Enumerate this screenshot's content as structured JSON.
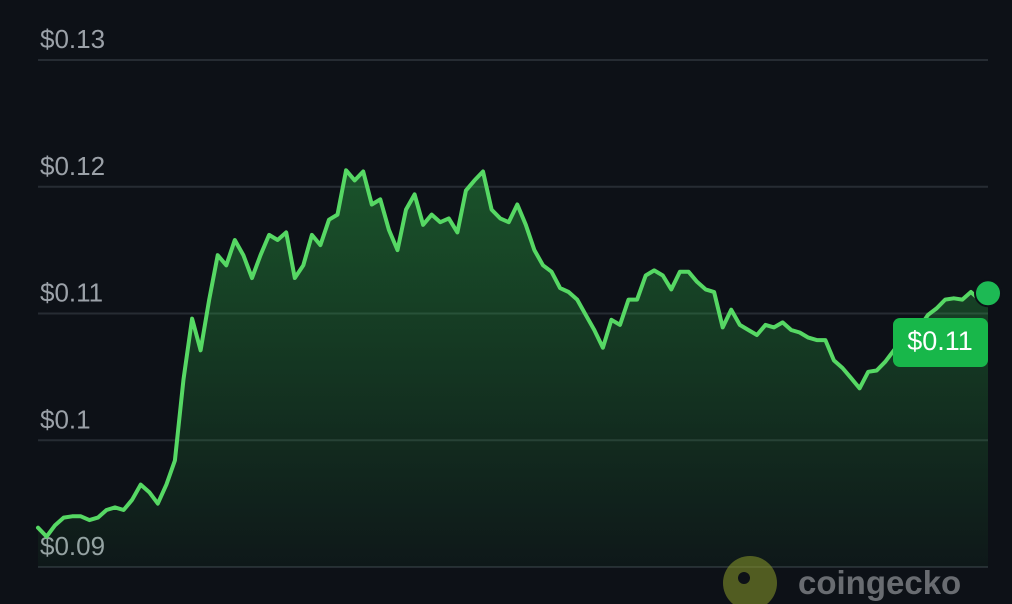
{
  "chart_data": {
    "type": "area",
    "values": [
      0.0931,
      0.0924,
      0.0933,
      0.0939,
      0.094,
      0.094,
      0.0937,
      0.0939,
      0.0945,
      0.0947,
      0.0945,
      0.0953,
      0.0965,
      0.0959,
      0.095,
      0.0965,
      0.0984,
      0.1048,
      0.1096,
      0.1071,
      0.1111,
      0.1146,
      0.1138,
      0.1158,
      0.1146,
      0.1128,
      0.1146,
      0.1162,
      0.1158,
      0.1164,
      0.1128,
      0.1138,
      0.1162,
      0.1154,
      0.1174,
      0.1178,
      0.1213,
      0.1205,
      0.1212,
      0.1186,
      0.119,
      0.1166,
      0.115,
      0.1182,
      0.1194,
      0.117,
      0.1178,
      0.1172,
      0.1175,
      0.1164,
      0.1197,
      0.1205,
      0.1212,
      0.1182,
      0.1175,
      0.1172,
      0.1186,
      0.117,
      0.115,
      0.1138,
      0.1133,
      0.112,
      0.1117,
      0.1111,
      0.1099,
      0.1087,
      0.1073,
      0.1095,
      0.1091,
      0.1111,
      0.1111,
      0.113,
      0.1134,
      0.113,
      0.1119,
      0.1133,
      0.1133,
      0.1125,
      0.1119,
      0.1117,
      0.1089,
      0.1103,
      0.1091,
      0.1087,
      0.1083,
      0.1091,
      0.1089,
      0.1093,
      0.1087,
      0.1085,
      0.1081,
      0.1079,
      0.1079,
      0.1063,
      0.1057,
      0.1049,
      0.1041,
      0.1054,
      0.1055,
      0.1062,
      0.1071,
      0.1079,
      0.1087,
      0.1089,
      0.1099,
      0.1104,
      0.1111,
      0.1112,
      0.1111,
      0.1117,
      0.1111,
      0.1116
    ],
    "color": "#56d864",
    "ylim": [
      0.09,
      0.13
    ],
    "yticks": [
      {
        "value": 0.09,
        "label": "$0.09"
      },
      {
        "value": 0.1,
        "label": "$0.1"
      },
      {
        "value": 0.11,
        "label": "$0.11"
      },
      {
        "value": 0.12,
        "label": "$0.12"
      },
      {
        "value": 0.13,
        "label": "$0.13"
      }
    ],
    "grid": true,
    "current_price_label": "$0.11",
    "watermark": "coingecko"
  }
}
